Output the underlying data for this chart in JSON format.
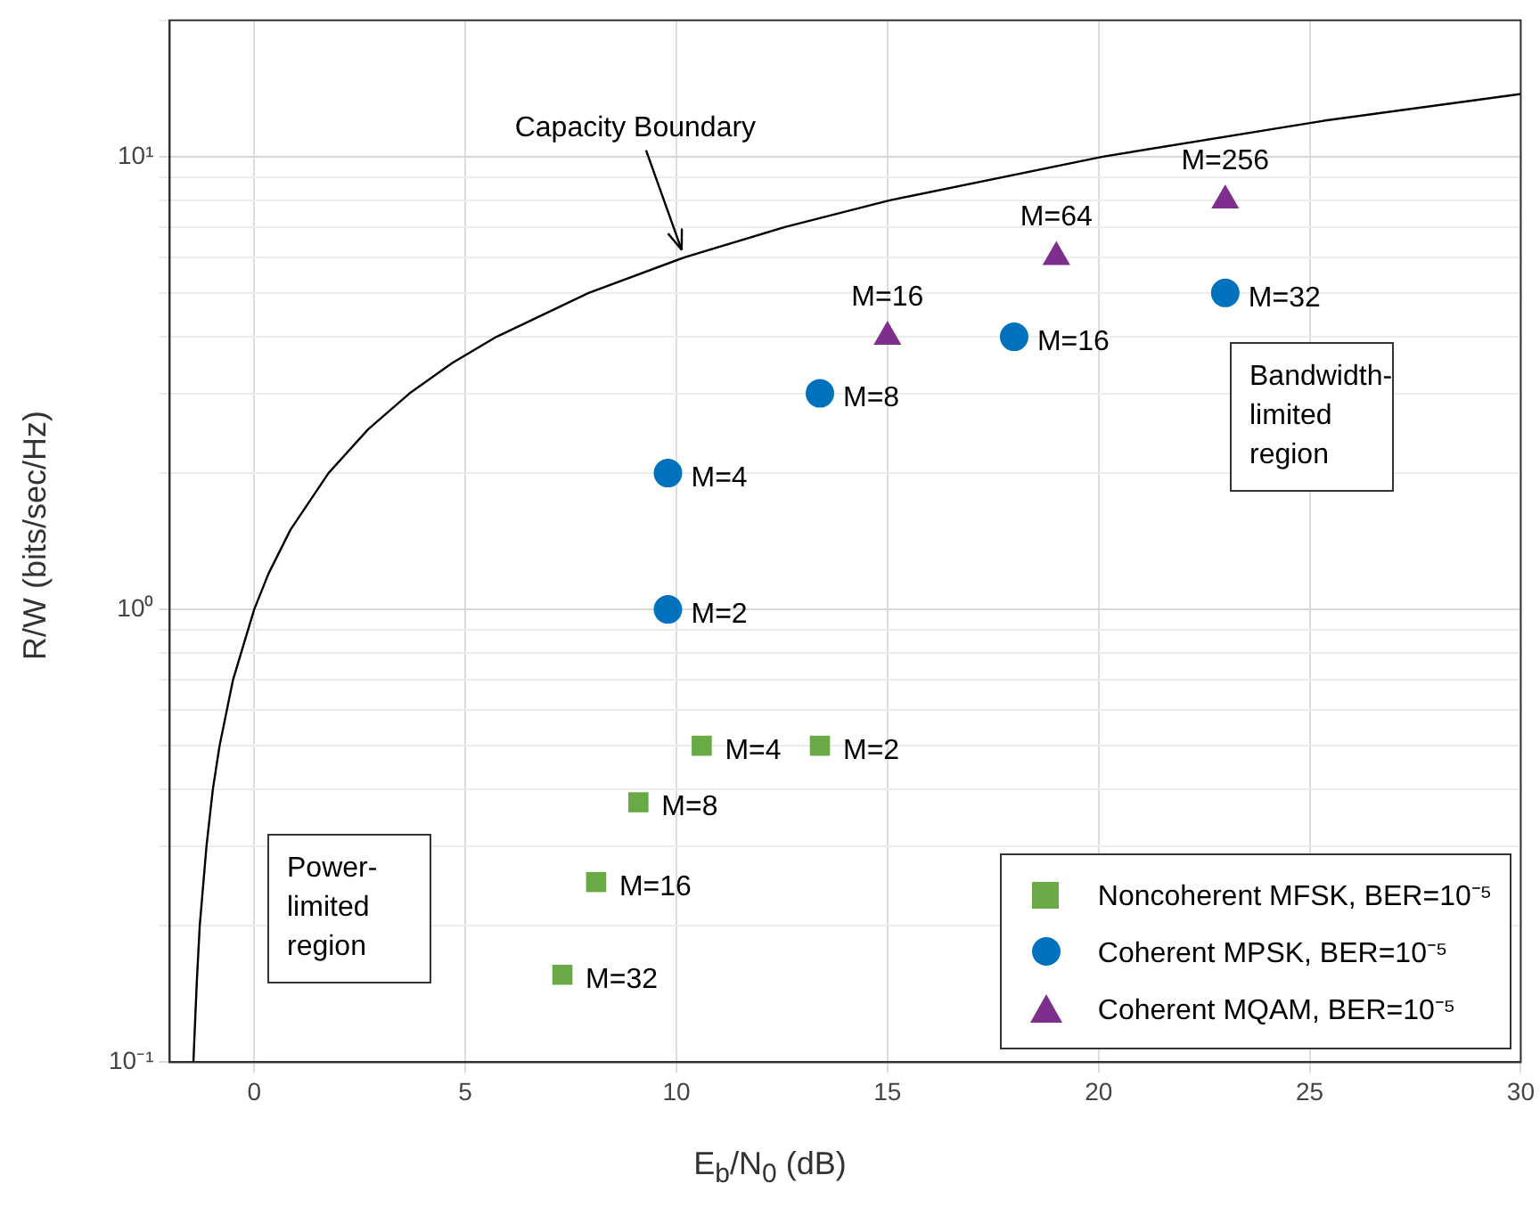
{
  "chart_data": {
    "type": "scatter",
    "xlabel": "E$_{b}$/N$_{0}$ (dB)",
    "ylabel": "R/W (bits/sec/Hz)",
    "xlim": [
      -2,
      30
    ],
    "xticks": [
      0,
      5,
      10,
      15,
      20,
      25,
      30
    ],
    "ylim": [
      0.1,
      20
    ],
    "log": "y",
    "yticks": [
      {
        "value": 0.1,
        "label": "10⁻¹"
      },
      {
        "value": 0.2,
        "label": null
      },
      {
        "value": 0.3,
        "label": null
      },
      {
        "value": 0.4,
        "label": null
      },
      {
        "value": 0.5,
        "label": null
      },
      {
        "value": 0.6,
        "label": null
      },
      {
        "value": 0.7,
        "label": null
      },
      {
        "value": 0.8,
        "label": null
      },
      {
        "value": 0.9,
        "label": null
      },
      {
        "value": 1,
        "label": "10⁰"
      },
      {
        "value": 2,
        "label": null
      },
      {
        "value": 3,
        "label": null
      },
      {
        "value": 4,
        "label": null
      },
      {
        "value": 5,
        "label": null
      },
      {
        "value": 6,
        "label": null
      },
      {
        "value": 7,
        "label": null
      },
      {
        "value": 8,
        "label": null
      },
      {
        "value": 9,
        "label": null
      },
      {
        "value": 10,
        "label": "10¹"
      },
      {
        "value": 20,
        "label": null
      }
    ],
    "grid": true,
    "legend": "bottom right",
    "series": [
      {
        "type": "line",
        "color": "#000000",
        "marker": "none",
        "line_style": "solid",
        "x": [
          -1.44,
          -1.36,
          -1.29,
          -1.13,
          -0.98,
          -0.82,
          -0.5,
          0,
          0.34,
          0.86,
          1.76,
          2.7,
          3.68,
          4.69,
          5.74,
          7.92,
          10.21,
          12.59,
          15.03,
          20.1,
          25.33,
          30
        ],
        "values": [
          0.1,
          0.15,
          0.2,
          0.3,
          0.4,
          0.5,
          0.7,
          1,
          1.2,
          1.5,
          2,
          2.5,
          3,
          3.5,
          4,
          5,
          6,
          7,
          8,
          10,
          12,
          13.75
        ]
      },
      {
        "type": "scatter",
        "name": "Noncoherent MFSK, BER=10⁻⁵",
        "color": "#6aaa46",
        "marker": "square",
        "x": [
          13.4,
          10.6,
          9.1,
          8.1,
          7.3
        ],
        "values": [
          0.5,
          0.5,
          0.375,
          0.25,
          0.156
        ]
      },
      {
        "type": "scatter",
        "name": "Coherent MPSK, BER=10⁻⁵",
        "color": "#0072bd",
        "marker": "circle",
        "x": [
          9.8,
          9.8,
          13.4,
          18,
          23
        ],
        "values": [
          1,
          2,
          3,
          4,
          5
        ]
      },
      {
        "type": "scatter",
        "name": "Coherent MQAM, BER=10⁻⁵",
        "color": "#7e2f8e",
        "marker": "triangle",
        "x": [
          15,
          19,
          23
        ],
        "values": [
          4,
          6,
          8
        ]
      }
    ],
    "annotations": [
      {
        "text": "Capacity Boundary",
        "x": 10.21,
        "y": 6
      },
      {
        "text": "M=2",
        "x": 13.4,
        "y": 0.5
      },
      {
        "text": "M=4",
        "x": 10.6,
        "y": 0.5
      },
      {
        "text": "M=8",
        "x": 9.1,
        "y": 0.375
      },
      {
        "text": "M=16",
        "x": 8.1,
        "y": 0.25
      },
      {
        "text": "M=32",
        "x": 7.3,
        "y": 0.156
      },
      {
        "text": "M=2",
        "x": 9.8,
        "y": 1
      },
      {
        "text": "M=4",
        "x": 9.8,
        "y": 2
      },
      {
        "text": "M=8",
        "x": 13.4,
        "y": 3
      },
      {
        "text": "M=16",
        "x": 18,
        "y": 4
      },
      {
        "text": "M=32",
        "x": 23,
        "y": 5
      },
      {
        "text": "M=16",
        "x": 15,
        "y": 4
      },
      {
        "text": "M=64",
        "x": 19,
        "y": 6
      },
      {
        "text": "M=256",
        "x": 23,
        "y": 8
      },
      "Power-limited region",
      "Bandwidth-limited region"
    ]
  }
}
